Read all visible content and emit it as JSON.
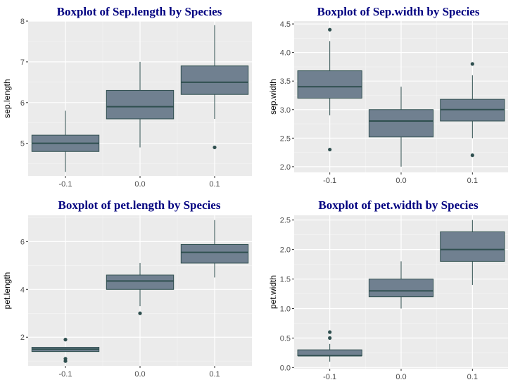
{
  "chart_data": [
    {
      "type": "boxplot",
      "title": "Boxplot of Sep.length by Species",
      "xlabel": "",
      "ylabel": "sep.length",
      "categories": [
        "-0.1",
        "0.0",
        "0.1"
      ],
      "yticks": [
        5,
        6,
        7,
        8
      ],
      "ylim": [
        4.2,
        8.0
      ],
      "boxes": [
        {
          "q1": 4.8,
          "median": 5.0,
          "q3": 5.2,
          "whisker_low": 4.3,
          "whisker_high": 5.8,
          "outliers": []
        },
        {
          "q1": 5.6,
          "median": 5.9,
          "q3": 6.3,
          "whisker_low": 4.9,
          "whisker_high": 7.0,
          "outliers": []
        },
        {
          "q1": 6.2,
          "median": 6.5,
          "q3": 6.9,
          "whisker_low": 5.6,
          "whisker_high": 7.9,
          "outliers": [
            4.9
          ]
        }
      ],
      "fill": "#708090",
      "line": "#2f4f4f"
    },
    {
      "type": "boxplot",
      "title": "Boxplot of Sep.width by Species",
      "xlabel": "",
      "ylabel": "sep.width",
      "categories": [
        "-0.1",
        "0.0",
        "0.1"
      ],
      "yticks": [
        "2.0",
        "2.5",
        "3.0",
        "3.5",
        "4.0",
        "4.5"
      ],
      "ylim": [
        1.9,
        4.55
      ],
      "boxes": [
        {
          "q1": 3.2,
          "median": 3.4,
          "q3": 3.68,
          "whisker_low": 2.9,
          "whisker_high": 4.2,
          "outliers": [
            4.4,
            2.3
          ]
        },
        {
          "q1": 2.52,
          "median": 2.8,
          "q3": 3.0,
          "whisker_low": 2.0,
          "whisker_high": 3.4,
          "outliers": []
        },
        {
          "q1": 2.8,
          "median": 3.0,
          "q3": 3.18,
          "whisker_low": 2.5,
          "whisker_high": 3.6,
          "outliers": [
            3.8,
            2.2
          ]
        }
      ],
      "fill": "#708090",
      "line": "#2f4f4f"
    },
    {
      "type": "boxplot",
      "title": "Boxplot of pet.length by Species",
      "xlabel": "",
      "ylabel": "pet.length",
      "categories": [
        "-0.1",
        "0.0",
        "0.1"
      ],
      "yticks": [
        2,
        4,
        6
      ],
      "ylim": [
        0.8,
        7.1
      ],
      "boxes": [
        {
          "q1": 1.4,
          "median": 1.5,
          "q3": 1.58,
          "whisker_low": 1.4,
          "whisker_high": 1.58,
          "outliers": [
            1.9,
            1.1,
            1.0
          ]
        },
        {
          "q1": 4.0,
          "median": 4.35,
          "q3": 4.6,
          "whisker_low": 3.3,
          "whisker_high": 5.1,
          "outliers": [
            3.0
          ]
        },
        {
          "q1": 5.1,
          "median": 5.55,
          "q3": 5.88,
          "whisker_low": 4.5,
          "whisker_high": 6.9,
          "outliers": []
        }
      ],
      "fill": "#708090",
      "line": "#2f4f4f"
    },
    {
      "type": "boxplot",
      "title": "Boxplot of pet.width by Species",
      "xlabel": "",
      "ylabel": "pet.width",
      "categories": [
        "-0.1",
        "0.0",
        "0.1"
      ],
      "yticks": [
        "0.0",
        "0.5",
        "1.0",
        "1.5",
        "2.0",
        "2.5"
      ],
      "ylim": [
        -0.02,
        2.58
      ],
      "boxes": [
        {
          "q1": 0.2,
          "median": 0.2,
          "q3": 0.3,
          "whisker_low": 0.1,
          "whisker_high": 0.4,
          "outliers": [
            0.6,
            0.5
          ]
        },
        {
          "q1": 1.2,
          "median": 1.3,
          "q3": 1.5,
          "whisker_low": 1.0,
          "whisker_high": 1.8,
          "outliers": []
        },
        {
          "q1": 1.8,
          "median": 2.0,
          "q3": 2.3,
          "whisker_low": 1.4,
          "whisker_high": 2.5,
          "outliers": []
        }
      ],
      "fill": "#708090",
      "line": "#2f4f4f"
    }
  ]
}
